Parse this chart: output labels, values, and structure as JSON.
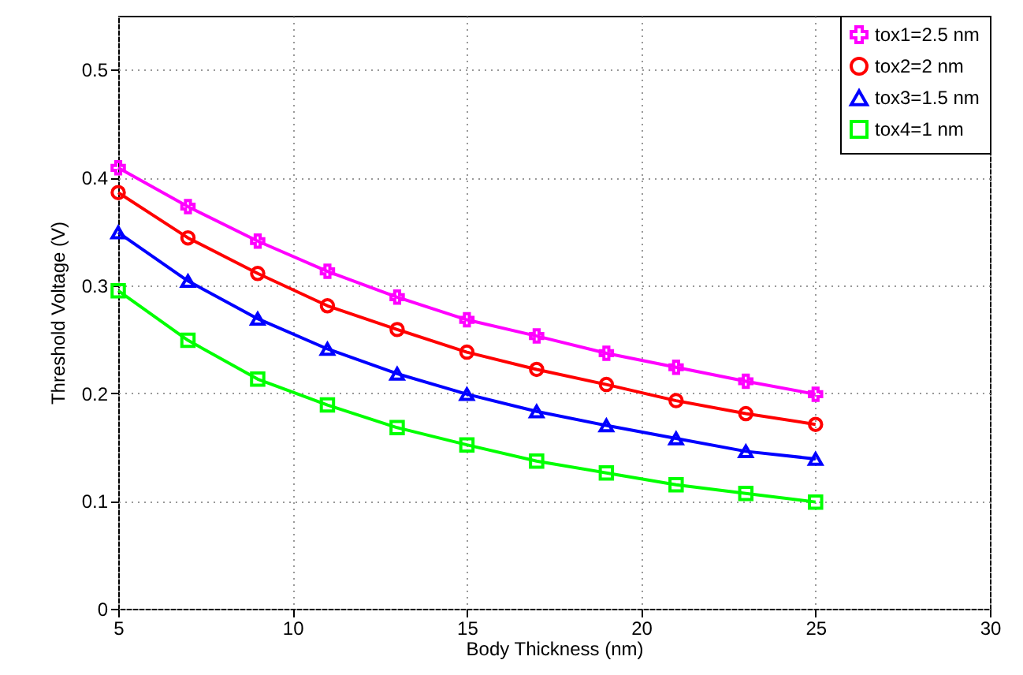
{
  "chart_data": {
    "type": "line",
    "xlabel": "Body Thickness (nm)",
    "ylabel": "Threshold Voltage (V)",
    "x": [
      5,
      7,
      9,
      11,
      13,
      15,
      17,
      19,
      21,
      23,
      25
    ],
    "series": [
      {
        "name": "tox1=2.5 nm",
        "color": "#ff00ff",
        "marker": "cross",
        "values": [
          0.409,
          0.373,
          0.341,
          0.313,
          0.289,
          0.268,
          0.253,
          0.237,
          0.224,
          0.211,
          0.199
        ]
      },
      {
        "name": "tox2=2 nm",
        "color": "#ff0000",
        "marker": "circle",
        "values": [
          0.386,
          0.344,
          0.311,
          0.281,
          0.259,
          0.238,
          0.222,
          0.208,
          0.193,
          0.181,
          0.171
        ]
      },
      {
        "name": "tox3=1.5 nm",
        "color": "#0000ff",
        "marker": "triangle",
        "values": [
          0.349,
          0.304,
          0.269,
          0.241,
          0.218,
          0.199,
          0.183,
          0.17,
          0.158,
          0.146,
          0.139
        ]
      },
      {
        "name": "tox4=1 nm",
        "color": "#00ff00",
        "marker": "square",
        "values": [
          0.295,
          0.249,
          0.213,
          0.189,
          0.168,
          0.152,
          0.137,
          0.126,
          0.115,
          0.107,
          0.099
        ]
      }
    ],
    "xlim": [
      5,
      30
    ],
    "xticks": [
      5,
      10,
      15,
      20,
      25,
      30
    ],
    "ylim": [
      0,
      0.55
    ],
    "yticks": [
      0,
      0.1,
      0.2,
      0.3,
      0.4,
      0.5
    ],
    "grid": true,
    "legend": "top right",
    "line_style": "solid"
  }
}
